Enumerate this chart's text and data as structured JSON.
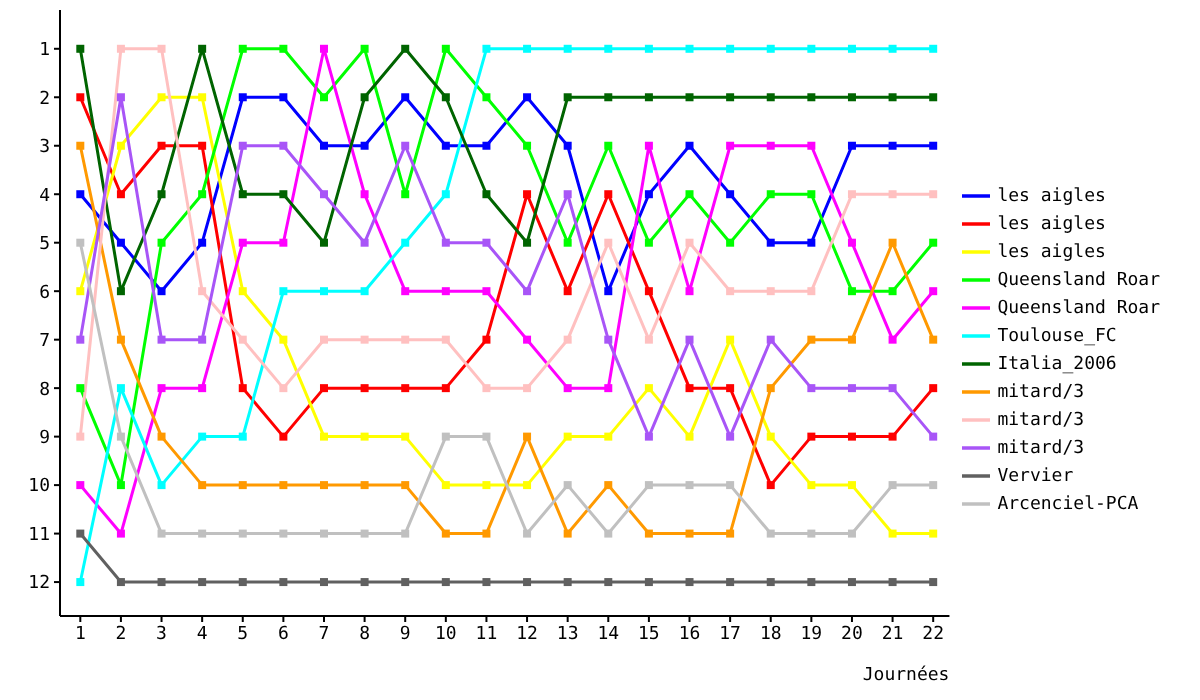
{
  "chart_data": {
    "type": "line",
    "xlabel": "Journées",
    "x": [
      1,
      2,
      3,
      4,
      5,
      6,
      7,
      8,
      9,
      10,
      11,
      12,
      13,
      14,
      15,
      16,
      17,
      18,
      19,
      20,
      21,
      22
    ],
    "xlim": [
      0.5,
      22.4
    ],
    "xticks": [
      1,
      2,
      3,
      4,
      5,
      6,
      7,
      8,
      9,
      10,
      11,
      12,
      13,
      14,
      15,
      16,
      17,
      18,
      19,
      20,
      21,
      22
    ],
    "ylim": [
      12.7,
      0.2
    ],
    "yticks": [
      1,
      2,
      3,
      4,
      5,
      6,
      7,
      8,
      9,
      10,
      11,
      12
    ],
    "grid": false,
    "legend": "right",
    "marker": "square",
    "line_style": "solid",
    "series": [
      {
        "name": "les aigles",
        "color": "#0000ff",
        "values": [
          4,
          5,
          6,
          5,
          2,
          2,
          3,
          3,
          2,
          3,
          3,
          2,
          3,
          6,
          4,
          3,
          4,
          5,
          5,
          3,
          3,
          3
        ]
      },
      {
        "name": "les aigles",
        "color": "#ff0000",
        "values": [
          2,
          4,
          3,
          3,
          8,
          9,
          8,
          8,
          8,
          8,
          7,
          4,
          6,
          4,
          6,
          8,
          8,
          10,
          9,
          9,
          9,
          8
        ]
      },
      {
        "name": "les aigles",
        "color": "#ffff00",
        "values": [
          6,
          3,
          2,
          2,
          6,
          7,
          9,
          9,
          9,
          10,
          10,
          10,
          9,
          9,
          8,
          9,
          7,
          9,
          10,
          10,
          11,
          11
        ]
      },
      {
        "name": "Queensland Roar",
        "color": "#00ff00",
        "values": [
          8,
          10,
          5,
          4,
          1,
          1,
          2,
          1,
          4,
          1,
          2,
          3,
          5,
          3,
          5,
          4,
          5,
          4,
          4,
          6,
          6,
          5
        ]
      },
      {
        "name": "Queensland Roar",
        "color": "#ff00ff",
        "values": [
          10,
          11,
          8,
          8,
          5,
          5,
          1,
          4,
          6,
          6,
          6,
          7,
          8,
          8,
          3,
          6,
          3,
          3,
          3,
          5,
          7,
          6
        ]
      },
      {
        "name": "Toulouse_FC",
        "color": "#00ffff",
        "values": [
          12,
          8,
          10,
          9,
          9,
          6,
          6,
          6,
          5,
          4,
          1,
          1,
          1,
          1,
          1,
          1,
          1,
          1,
          1,
          1,
          1,
          1
        ]
      },
      {
        "name": "Italia_2006",
        "color": "#006400",
        "values": [
          1,
          6,
          4,
          1,
          4,
          4,
          5,
          2,
          1,
          2,
          4,
          5,
          2,
          2,
          2,
          2,
          2,
          2,
          2,
          2,
          2,
          2
        ]
      },
      {
        "name": "mitard/3",
        "color": "#ff9900",
        "values": [
          3,
          7,
          9,
          10,
          10,
          10,
          10,
          10,
          10,
          11,
          11,
          9,
          11,
          10,
          11,
          11,
          11,
          8,
          7,
          7,
          5,
          7
        ]
      },
      {
        "name": "mitard/3",
        "color": "#ffc0c0",
        "values": [
          9,
          1,
          1,
          6,
          7,
          8,
          7,
          7,
          7,
          7,
          8,
          8,
          7,
          5,
          7,
          5,
          6,
          6,
          6,
          4,
          4,
          4
        ]
      },
      {
        "name": "mitard/3",
        "color": "#a855f7",
        "values": [
          7,
          2,
          7,
          7,
          3,
          3,
          4,
          5,
          3,
          5,
          5,
          6,
          4,
          7,
          9,
          7,
          9,
          7,
          8,
          8,
          8,
          9
        ]
      },
      {
        "name": "Vervier",
        "color": "#606060",
        "values": [
          11,
          12,
          12,
          12,
          12,
          12,
          12,
          12,
          12,
          12,
          12,
          12,
          12,
          12,
          12,
          12,
          12,
          12,
          12,
          12,
          12,
          12
        ]
      },
      {
        "name": "Arcenciel-PCA",
        "color": "#c0c0c0",
        "values": [
          5,
          9,
          11,
          11,
          11,
          11,
          11,
          11,
          11,
          9,
          9,
          11,
          10,
          11,
          10,
          10,
          10,
          11,
          11,
          11,
          10,
          10
        ]
      }
    ]
  }
}
